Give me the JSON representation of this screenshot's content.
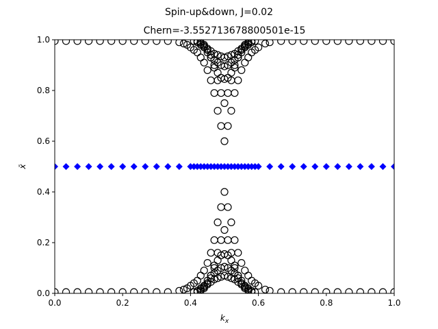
{
  "chart_data": {
    "type": "scatter",
    "suptitle": "Spin-up&down, J=0.02",
    "title": "Chern=-3.552713678800501e-15",
    "xlabel": "k_x",
    "ylabel": "x̄",
    "xlim": [
      0,
      1
    ],
    "ylim": [
      0,
      1
    ],
    "xticks": [
      "0.0",
      "0.2",
      "0.4",
      "0.6",
      "0.8",
      "1.0"
    ],
    "yticks": [
      "0.0",
      "0.2",
      "0.4",
      "0.6",
      "0.8",
      "1.0"
    ],
    "grid": false,
    "series": [
      {
        "marker": "open-circle",
        "color": "#000000",
        "x": [
          0,
          0.0333,
          0.0667,
          0.1,
          0.1333,
          0.1667,
          0.2,
          0.2333,
          0.2667,
          0.3,
          0.3333,
          0.3667,
          0.38,
          0.39,
          0.4,
          0.41,
          0.42,
          0.43,
          0.44,
          0.45,
          0.46,
          0.47,
          0.48,
          0.49,
          0.5,
          0.51,
          0.52,
          0.53,
          0.54,
          0.55,
          0.56,
          0.57,
          0.58,
          0.59,
          0.6,
          0.62,
          0.6333,
          0.6667,
          0.7,
          0.7333,
          0.7667,
          0.8,
          0.8333,
          0.8667,
          0.9,
          0.9333,
          0.9667,
          1,
          0.44,
          0.45,
          0.46,
          0.47,
          0.48,
          0.49,
          0.5,
          0.51,
          0.52,
          0.53,
          0.54,
          0.55,
          0.56,
          0.43,
          0.44,
          0.45,
          0.46,
          0.47,
          0.48,
          0.49,
          0.5,
          0.51,
          0.52,
          0.53,
          0.54,
          0.55,
          0.56,
          0.57,
          0.42,
          0.43,
          0.44,
          0.45,
          0.46,
          0.47,
          0.48,
          0.49,
          0.5,
          0.51,
          0.52,
          0.53,
          0.54,
          0.55,
          0.56,
          0.57,
          0.58,
          0.41,
          0.42,
          0.43,
          0.44,
          0.45,
          0.46,
          0.47,
          0.48,
          0.49,
          0.5,
          0.51,
          0.52,
          0.53,
          0.54,
          0.55,
          0.56,
          0.57,
          0.58,
          0.59,
          0,
          0.0333,
          0.0667,
          0.1,
          0.1333,
          0.1667,
          0.2,
          0.2333,
          0.2667,
          0.3,
          0.3333,
          0.3667,
          0.38,
          0.39,
          0.4,
          0.41,
          0.42,
          0.43,
          0.44,
          0.45,
          0.46,
          0.47,
          0.48,
          0.49,
          0.5,
          0.51,
          0.52,
          0.53,
          0.54,
          0.55,
          0.56,
          0.57,
          0.58,
          0.59,
          0.6,
          0.62,
          0.6333,
          0.6667,
          0.7,
          0.7333,
          0.7667,
          0.8,
          0.8333,
          0.8667,
          0.9,
          0.9333,
          0.9667,
          1,
          0.44,
          0.45,
          0.46,
          0.47,
          0.48,
          0.49,
          0.5,
          0.51,
          0.52,
          0.53,
          0.54,
          0.55,
          0.56,
          0.43,
          0.44,
          0.45,
          0.46,
          0.47,
          0.48,
          0.49,
          0.5,
          0.51,
          0.52,
          0.53,
          0.54,
          0.55,
          0.56,
          0.57,
          0.42,
          0.43,
          0.44,
          0.45,
          0.46,
          0.47,
          0.48,
          0.49,
          0.5,
          0.51,
          0.52,
          0.53,
          0.54,
          0.55,
          0.56,
          0.57,
          0.58,
          0.41,
          0.42,
          0.43,
          0.44,
          0.45,
          0.46,
          0.47,
          0.48,
          0.49,
          0.5,
          0.51,
          0.52,
          0.53,
          0.54,
          0.55,
          0.56,
          0.57,
          0.58,
          0.59
        ],
        "y": [
          0.995,
          0.995,
          0.995,
          0.995,
          0.995,
          0.995,
          0.995,
          0.995,
          0.995,
          0.995,
          0.995,
          0.99,
          0.985,
          0.98,
          0.97,
          0.96,
          0.95,
          0.93,
          0.91,
          0.88,
          0.84,
          0.79,
          0.72,
          0.66,
          0.6,
          0.66,
          0.72,
          0.79,
          0.84,
          0.88,
          0.91,
          0.93,
          0.95,
          0.96,
          0.97,
          0.985,
          0.99,
          0.995,
          0.995,
          0.995,
          0.995,
          0.995,
          0.995,
          0.995,
          0.995,
          0.995,
          0.995,
          0.995,
          0.98,
          0.96,
          0.93,
          0.89,
          0.84,
          0.79,
          0.75,
          0.79,
          0.84,
          0.89,
          0.93,
          0.96,
          0.98,
          0.99,
          0.97,
          0.95,
          0.93,
          0.9,
          0.87,
          0.85,
          0.845,
          0.85,
          0.87,
          0.9,
          0.93,
          0.95,
          0.97,
          0.99,
          0.995,
          0.985,
          0.97,
          0.96,
          0.94,
          0.92,
          0.91,
          0.9,
          0.895,
          0.9,
          0.91,
          0.92,
          0.94,
          0.96,
          0.97,
          0.985,
          0.995,
          0.995,
          0.99,
          0.98,
          0.975,
          0.965,
          0.955,
          0.945,
          0.94,
          0.935,
          0.93,
          0.935,
          0.94,
          0.945,
          0.955,
          0.965,
          0.975,
          0.98,
          0.99,
          0.995,
          0.005,
          0.005,
          0.005,
          0.005,
          0.005,
          0.005,
          0.005,
          0.005,
          0.005,
          0.005,
          0.005,
          0.01,
          0.015,
          0.02,
          0.03,
          0.04,
          0.05,
          0.07,
          0.09,
          0.12,
          0.16,
          0.21,
          0.28,
          0.34,
          0.4,
          0.34,
          0.28,
          0.21,
          0.16,
          0.12,
          0.09,
          0.07,
          0.05,
          0.04,
          0.03,
          0.015,
          0.01,
          0.005,
          0.005,
          0.005,
          0.005,
          0.005,
          0.005,
          0.005,
          0.005,
          0.005,
          0.005,
          0.005,
          0.02,
          0.04,
          0.07,
          0.11,
          0.16,
          0.21,
          0.25,
          0.21,
          0.16,
          0.11,
          0.07,
          0.04,
          0.02,
          0.01,
          0.03,
          0.05,
          0.07,
          0.1,
          0.13,
          0.15,
          0.155,
          0.15,
          0.13,
          0.1,
          0.07,
          0.05,
          0.03,
          0.01,
          0.005,
          0.015,
          0.03,
          0.04,
          0.06,
          0.08,
          0.09,
          0.1,
          0.105,
          0.1,
          0.09,
          0.08,
          0.06,
          0.04,
          0.03,
          0.015,
          0.005,
          0.005,
          0.01,
          0.02,
          0.025,
          0.035,
          0.045,
          0.055,
          0.06,
          0.065,
          0.07,
          0.065,
          0.06,
          0.055,
          0.045,
          0.035,
          0.025,
          0.02,
          0.01,
          0.005
        ]
      },
      {
        "marker": "filled-diamond",
        "color": "#0000ff",
        "x": [
          0,
          0.0333,
          0.0667,
          0.1,
          0.1333,
          0.1667,
          0.2,
          0.2333,
          0.2667,
          0.3,
          0.3333,
          0.3667,
          0.4,
          0.41,
          0.42,
          0.43,
          0.44,
          0.45,
          0.46,
          0.47,
          0.48,
          0.49,
          0.5,
          0.51,
          0.52,
          0.53,
          0.54,
          0.55,
          0.56,
          0.57,
          0.58,
          0.59,
          0.6,
          0.6333,
          0.6667,
          0.7,
          0.7333,
          0.7667,
          0.8,
          0.8333,
          0.8667,
          0.9,
          0.9333,
          0.9667,
          1
        ],
        "y": [
          0.5,
          0.5,
          0.5,
          0.5,
          0.5,
          0.5,
          0.5,
          0.5,
          0.5,
          0.5,
          0.5,
          0.5,
          0.5,
          0.5,
          0.5,
          0.5,
          0.5,
          0.5,
          0.5,
          0.5,
          0.5,
          0.5,
          0.5,
          0.5,
          0.5,
          0.5,
          0.5,
          0.5,
          0.5,
          0.5,
          0.5,
          0.5,
          0.5,
          0.5,
          0.5,
          0.5,
          0.5,
          0.5,
          0.5,
          0.5,
          0.5,
          0.5,
          0.5,
          0.5,
          0.5
        ]
      }
    ]
  }
}
